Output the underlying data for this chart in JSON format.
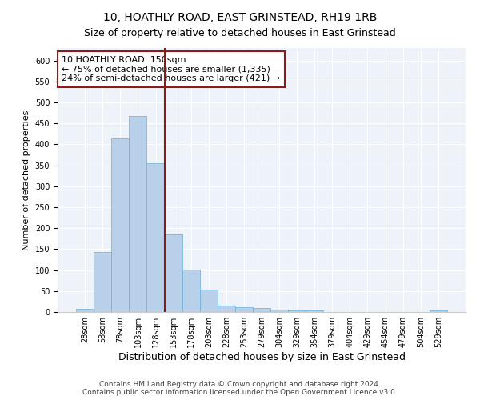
{
  "title_line1": "10, HOATHLY ROAD, EAST GRINSTEAD, RH19 1RB",
  "title_line2": "Size of property relative to detached houses in East Grinstead",
  "xlabel": "Distribution of detached houses by size in East Grinstead",
  "ylabel": "Number of detached properties",
  "bar_values": [
    8,
    143,
    415,
    468,
    355,
    185,
    102,
    53,
    15,
    12,
    9,
    5,
    4,
    3,
    0,
    0,
    0,
    0,
    0,
    0,
    4
  ],
  "bar_labels": [
    "28sqm",
    "53sqm",
    "78sqm",
    "103sqm",
    "128sqm",
    "153sqm",
    "178sqm",
    "203sqm",
    "228sqm",
    "253sqm",
    "279sqm",
    "304sqm",
    "329sqm",
    "354sqm",
    "379sqm",
    "404sqm",
    "429sqm",
    "454sqm",
    "479sqm",
    "504sqm",
    "529sqm"
  ],
  "bar_color": "#b8d0ea",
  "bar_edge_color": "#6aaed6",
  "vline_color": "#8b1a1a",
  "vline_x": 4.5,
  "annotation_text_line1": "10 HOATHLY ROAD: 150sqm",
  "annotation_text_line2": "← 75% of detached houses are smaller (1,335)",
  "annotation_text_line3": "24% of semi-detached houses are larger (421) →",
  "annotation_box_color": "#8b1a1a",
  "ylim": [
    0,
    630
  ],
  "yticks": [
    0,
    50,
    100,
    150,
    200,
    250,
    300,
    350,
    400,
    450,
    500,
    550,
    600
  ],
  "background_color": "#eef2f9",
  "footer_text": "Contains HM Land Registry data © Crown copyright and database right 2024.\nContains public sector information licensed under the Open Government Licence v3.0.",
  "title_fontsize": 10,
  "subtitle_fontsize": 9,
  "xlabel_fontsize": 9,
  "ylabel_fontsize": 8,
  "tick_fontsize": 7,
  "annotation_fontsize": 8,
  "footer_fontsize": 6.5
}
